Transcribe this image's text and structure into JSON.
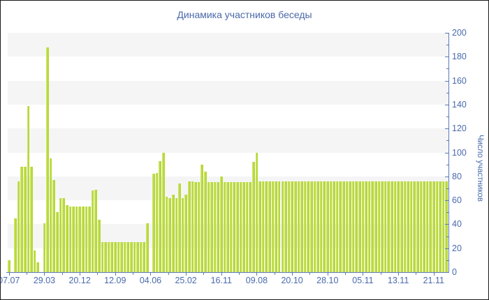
{
  "frame": {
    "background": "#ffffff",
    "border_color": "#1a1a1a"
  },
  "title": {
    "text": "Динамика участников беседы",
    "color": "#4a68a8"
  },
  "chart_data": {
    "type": "bar",
    "title": "Динамика участников беседы",
    "xlabel": "",
    "ylabel": "Число участников",
    "ylim": [
      0,
      200
    ],
    "y_major_tick_step": 20,
    "y_minor_tick_step": 10,
    "y_tick_labels": [
      "0",
      "20",
      "40",
      "60",
      "80",
      "100",
      "120",
      "140",
      "160",
      "180",
      "200"
    ],
    "x_tick_labels": [
      "07.07",
      "29.03",
      "20.12",
      "12.09",
      "04.06",
      "25.02",
      "16.11",
      "09.08",
      "20.10",
      "28.10",
      "05.11",
      "13.11",
      "21.11"
    ],
    "x_tick_bar_indices": [
      0,
      11,
      22,
      33,
      44,
      55,
      66,
      77,
      88,
      99,
      110,
      121,
      132
    ],
    "legend_position": "none",
    "grid": "alternating-horizontal-bands",
    "background_bands": {
      "color": "#f5f5f6",
      "value_ranges": [
        [
          20,
          40
        ],
        [
          60,
          80
        ],
        [
          100,
          120
        ],
        [
          140,
          160
        ],
        [
          180,
          200
        ]
      ]
    },
    "bar_color": "#b5d834",
    "bar_highlight_color": "#d6e77e",
    "axis_color": "#5b7ab5",
    "tick_label_color": "#4a6aad",
    "values": [
      10,
      0,
      45,
      76,
      88,
      88,
      139,
      88,
      18,
      8,
      0,
      41,
      188,
      95,
      77,
      50,
      62,
      62,
      56,
      55,
      55,
      55,
      55,
      55,
      55,
      55,
      68,
      69,
      44,
      25,
      25,
      25,
      25,
      25,
      25,
      25,
      25,
      25,
      25,
      25,
      25,
      25,
      25,
      41,
      0,
      82,
      83,
      93,
      100,
      63,
      62,
      65,
      62,
      74,
      62,
      65,
      76,
      76,
      75,
      75,
      90,
      84,
      75,
      75,
      75,
      75,
      80,
      75,
      75,
      75,
      75,
      75,
      75,
      75,
      75,
      75,
      92,
      100,
      76,
      76,
      76,
      76,
      76,
      76,
      76,
      76,
      76,
      76,
      76,
      76,
      76,
      76,
      76,
      76,
      76,
      76,
      76,
      76,
      76,
      76,
      76,
      76,
      76,
      76,
      76,
      76,
      76,
      76,
      76,
      76,
      76,
      76,
      76,
      76,
      76,
      76,
      76,
      76,
      76,
      76,
      76,
      76,
      76,
      76,
      76,
      76,
      76,
      76,
      76,
      76,
      76,
      76,
      76,
      76,
      76,
      76,
      76
    ]
  }
}
